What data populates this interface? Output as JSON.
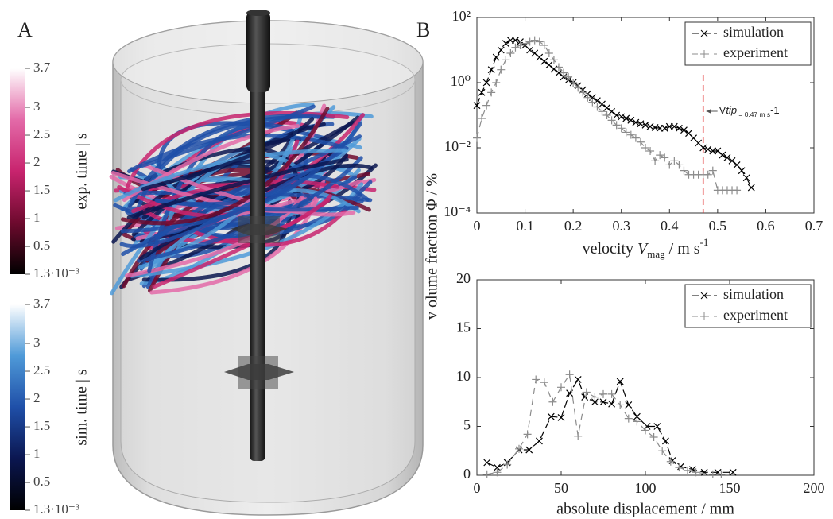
{
  "panel_labels": [
    "A",
    "B"
  ],
  "colorbars": [
    {
      "label": "exp. time | s",
      "lim": [
        0.0013,
        3.7
      ],
      "colors": [
        "#000000",
        "#6e0a2e",
        "#c8246e",
        "#e36aa8",
        "#ffffff"
      ],
      "ticks": [
        3.7,
        3,
        2.5,
        2,
        1.5,
        1,
        0.5,
        {
          "value": 0.0013,
          "label": "1.3·10⁻³"
        }
      ]
    },
    {
      "label": "sim. time | s",
      "lim": [
        0.0013,
        3.7
      ],
      "colors": [
        "#000000",
        "#0b1650",
        "#1f4fa8",
        "#4f9ad8",
        "#ffffff"
      ],
      "ticks": [
        3.7,
        3,
        2.5,
        2,
        1.5,
        1,
        0.5,
        {
          "value": 0.0013,
          "label": "1.3·10⁻³"
        }
      ]
    }
  ],
  "chart_data": [
    {
      "type": "line",
      "ylog": true,
      "ylabel": "v olume fraction Φ / %",
      "xlabel": [
        "velocity ",
        "V",
        "mag",
        " / m s",
        "-1"
      ],
      "xlim": [
        0,
        0.7
      ],
      "xticks": [
        0,
        0.1,
        0.2,
        0.3,
        0.4,
        0.5,
        0.6,
        0.7
      ],
      "ylim": [
        0.0001,
        100
      ],
      "yticks": [
        {
          "value": 0.0001,
          "label": "10⁻⁴"
        },
        {
          "value": 0.01,
          "label": "10⁻²"
        },
        {
          "value": 1,
          "label": "10⁰"
        },
        {
          "value": 100,
          "label": "10²"
        }
      ],
      "legend": "upper right",
      "annotation": {
        "x": 0.47,
        "color": "#e03030",
        "label": [
          "V",
          "tip",
          " = 0.47 m s",
          "-1"
        ]
      },
      "series": [
        {
          "name": "simulation",
          "color": "#000000",
          "marker": "x",
          "x": [
            0,
            0.01,
            0.02,
            0.03,
            0.04,
            0.05,
            0.06,
            0.07,
            0.08,
            0.09,
            0.1,
            0.11,
            0.12,
            0.13,
            0.14,
            0.15,
            0.16,
            0.17,
            0.18,
            0.19,
            0.2,
            0.21,
            0.22,
            0.23,
            0.24,
            0.25,
            0.26,
            0.27,
            0.28,
            0.29,
            0.3,
            0.31,
            0.32,
            0.33,
            0.34,
            0.35,
            0.36,
            0.37,
            0.38,
            0.39,
            0.4,
            0.41,
            0.42,
            0.43,
            0.44,
            0.45,
            0.46,
            0.47,
            0.48,
            0.49,
            0.5,
            0.51,
            0.52,
            0.53,
            0.54,
            0.55,
            0.56,
            0.57
          ],
          "values": [
            0.2,
            0.5,
            1,
            2.5,
            6,
            10,
            16,
            20,
            20,
            18,
            14,
            10,
            8,
            6,
            4.5,
            3.5,
            2.6,
            2,
            1.5,
            1.2,
            1,
            0.8,
            0.6,
            0.45,
            0.35,
            0.28,
            0.22,
            0.17,
            0.13,
            0.1,
            0.09,
            0.08,
            0.07,
            0.06,
            0.055,
            0.05,
            0.045,
            0.042,
            0.04,
            0.04,
            0.045,
            0.045,
            0.04,
            0.035,
            0.028,
            0.02,
            0.014,
            0.01,
            0.009,
            0.008,
            0.008,
            0.006,
            0.005,
            0.004,
            0.003,
            0.002,
            0.0012,
            0.0006
          ]
        },
        {
          "name": "experiment",
          "color": "#8c8c8c",
          "marker": "+",
          "x": [
            0,
            0.01,
            0.02,
            0.03,
            0.04,
            0.05,
            0.06,
            0.07,
            0.08,
            0.09,
            0.1,
            0.11,
            0.12,
            0.13,
            0.14,
            0.15,
            0.16,
            0.17,
            0.18,
            0.19,
            0.2,
            0.21,
            0.22,
            0.23,
            0.24,
            0.25,
            0.26,
            0.27,
            0.28,
            0.29,
            0.3,
            0.31,
            0.32,
            0.33,
            0.34,
            0.35,
            0.36,
            0.37,
            0.38,
            0.39,
            0.4,
            0.41,
            0.42,
            0.43,
            0.44,
            0.45,
            0.46,
            0.47,
            0.48,
            0.49,
            0.5,
            0.51,
            0.52,
            0.53,
            0.54
          ],
          "values": [
            0.02,
            0.08,
            0.2,
            0.5,
            1,
            2.5,
            5,
            8,
            12,
            14,
            16,
            18,
            20,
            18,
            14,
            8,
            5,
            3,
            2,
            1.5,
            1,
            0.7,
            0.5,
            0.35,
            0.25,
            0.18,
            0.13,
            0.1,
            0.07,
            0.05,
            0.04,
            0.03,
            0.025,
            0.02,
            0.015,
            0.01,
            0.008,
            0.004,
            0.006,
            0.005,
            0.003,
            0.004,
            0.003,
            0.002,
            0.0015,
            0.0015,
            0.0015,
            0.0015,
            0.0015,
            0.002,
            0.0005,
            0.0005,
            0.0005,
            0.0005,
            0.0005
          ]
        }
      ]
    },
    {
      "type": "line",
      "xlabel": "absolute displacement / mm",
      "xlim": [
        0,
        200
      ],
      "xticks": [
        0,
        50,
        100,
        150,
        200
      ],
      "ylim": [
        0,
        20
      ],
      "yticks": [
        0,
        5,
        10,
        15,
        20
      ],
      "legend": "upper right",
      "series": [
        {
          "name": "simulation",
          "color": "#000000",
          "marker": "x",
          "x": [
            6,
            12,
            18,
            25,
            31,
            37,
            44,
            50,
            55,
            60,
            64,
            70,
            75,
            80,
            85,
            90,
            95,
            101,
            107,
            112,
            116,
            121,
            128,
            135,
            143,
            152
          ],
          "values": [
            1.3,
            0.8,
            1.3,
            2.6,
            2.6,
            3.5,
            6,
            5.9,
            8.4,
            9.8,
            8,
            7.5,
            7.5,
            7.3,
            9.6,
            7.2,
            6,
            5,
            5,
            3.5,
            1.5,
            0.9,
            0.6,
            0.3,
            0.3,
            0.3
          ]
        },
        {
          "name": "experiment",
          "color": "#8c8c8c",
          "marker": "+",
          "x": [
            6,
            12,
            18,
            25,
            30,
            35,
            40,
            45,
            50,
            55,
            60,
            65,
            70,
            75,
            80,
            85,
            90,
            95,
            100,
            105,
            110,
            115,
            120,
            125,
            130,
            140,
            145
          ],
          "values": [
            0.1,
            0.3,
            1.1,
            2.7,
            4.2,
            9.8,
            9.5,
            7.5,
            9,
            10.3,
            4,
            8.5,
            8,
            8.3,
            8.3,
            7.2,
            5.8,
            5.5,
            4.6,
            3.9,
            2.5,
            1.4,
            0.8,
            0.5,
            0.3,
            0.1,
            0.1
          ]
        }
      ]
    }
  ]
}
